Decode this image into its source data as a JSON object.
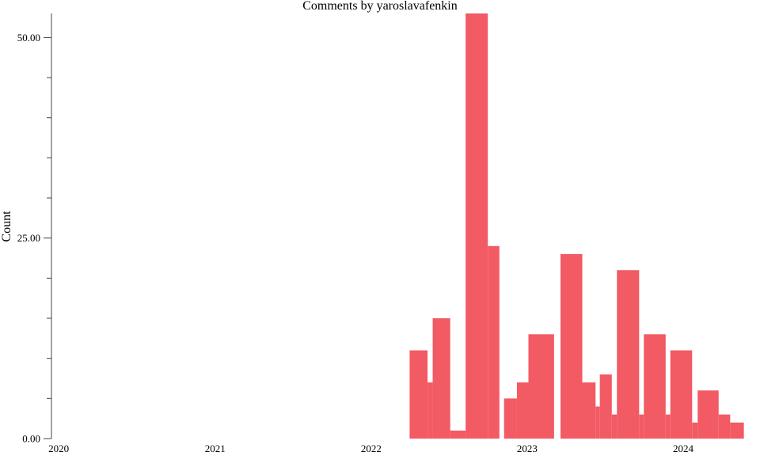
{
  "chart_data": {
    "type": "bar",
    "title": "Comments by yaroslavafenkin",
    "xlabel": "",
    "ylabel": "Count",
    "ylim": [
      0,
      53
    ],
    "xlim": [
      "2019-12-15",
      "2024-06-01"
    ],
    "y_ticks": [
      {
        "value": 0,
        "label": "0.00"
      },
      {
        "value": 25,
        "label": "25.00"
      },
      {
        "value": 50,
        "label": "50.00"
      }
    ],
    "y_minor_ticks": [
      5,
      10,
      15,
      20,
      30,
      35,
      40,
      45
    ],
    "x_ticks": [
      {
        "value": "2020-01-01",
        "label": "2020"
      },
      {
        "value": "2021-01-01",
        "label": "2021"
      },
      {
        "value": "2022-01-01",
        "label": "2022"
      },
      {
        "value": "2023-01-01",
        "label": "2023"
      },
      {
        "value": "2024-01-01",
        "label": "2024"
      }
    ],
    "grid": false,
    "legend": "none",
    "color": "#f25a64",
    "bars": [
      {
        "start": "2022-04-01",
        "end": "2022-05-13",
        "value": 11
      },
      {
        "start": "2022-05-13",
        "end": "2022-05-25",
        "value": 7
      },
      {
        "start": "2022-05-25",
        "end": "2022-07-05",
        "value": 15
      },
      {
        "start": "2022-07-05",
        "end": "2022-07-25",
        "value": 1
      },
      {
        "start": "2022-07-25",
        "end": "2022-08-10",
        "value": 1
      },
      {
        "start": "2022-08-10",
        "end": "2022-10-01",
        "value": 53
      },
      {
        "start": "2022-10-01",
        "end": "2022-10-28",
        "value": 24
      },
      {
        "start": "2022-11-08",
        "end": "2022-12-08",
        "value": 5
      },
      {
        "start": "2022-12-08",
        "end": "2023-01-04",
        "value": 7
      },
      {
        "start": "2023-01-04",
        "end": "2023-03-05",
        "value": 13
      },
      {
        "start": "2023-03-20",
        "end": "2023-05-10",
        "value": 23
      },
      {
        "start": "2023-05-10",
        "end": "2023-06-10",
        "value": 7
      },
      {
        "start": "2023-06-10",
        "end": "2023-06-20",
        "value": 4
      },
      {
        "start": "2023-06-20",
        "end": "2023-07-18",
        "value": 8
      },
      {
        "start": "2023-07-18",
        "end": "2023-07-30",
        "value": 3
      },
      {
        "start": "2023-07-30",
        "end": "2023-09-20",
        "value": 21
      },
      {
        "start": "2023-09-20",
        "end": "2023-10-01",
        "value": 3
      },
      {
        "start": "2023-10-01",
        "end": "2023-11-21",
        "value": 13
      },
      {
        "start": "2023-11-21",
        "end": "2023-12-02",
        "value": 3
      },
      {
        "start": "2023-12-02",
        "end": "2024-01-22",
        "value": 11
      },
      {
        "start": "2024-01-22",
        "end": "2024-02-04",
        "value": 2
      },
      {
        "start": "2024-02-04",
        "end": "2024-03-24",
        "value": 6
      },
      {
        "start": "2024-03-24",
        "end": "2024-04-20",
        "value": 3
      },
      {
        "start": "2024-04-20",
        "end": "2024-05-22",
        "value": 2
      }
    ]
  }
}
